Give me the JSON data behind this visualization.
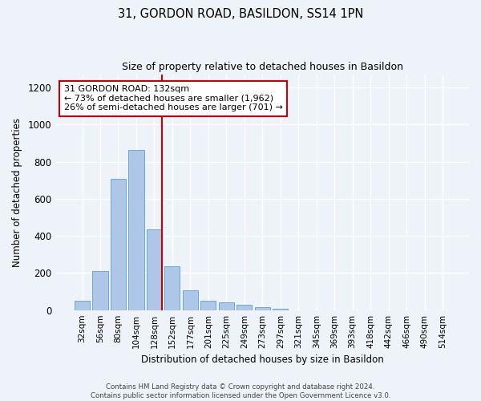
{
  "title": "31, GORDON ROAD, BASILDON, SS14 1PN",
  "subtitle": "Size of property relative to detached houses in Basildon",
  "xlabel": "Distribution of detached houses by size in Basildon",
  "ylabel": "Number of detached properties",
  "categories": [
    "32sqm",
    "56sqm",
    "80sqm",
    "104sqm",
    "128sqm",
    "152sqm",
    "177sqm",
    "201sqm",
    "225sqm",
    "249sqm",
    "273sqm",
    "297sqm",
    "321sqm",
    "345sqm",
    "369sqm",
    "393sqm",
    "418sqm",
    "442sqm",
    "466sqm",
    "490sqm",
    "514sqm"
  ],
  "values": [
    50,
    210,
    710,
    865,
    435,
    235,
    105,
    50,
    40,
    28,
    18,
    8,
    0,
    0,
    0,
    0,
    0,
    0,
    0,
    0,
    0
  ],
  "bar_color": "#aec6e8",
  "bar_edge_color": "#5a9fd4",
  "vline_index": 4,
  "vline_color": "#cc0000",
  "annotation_text": "31 GORDON ROAD: 132sqm\n← 73% of detached houses are smaller (1,962)\n26% of semi-detached houses are larger (701) →",
  "annotation_box_color": "#ffffff",
  "annotation_box_edge": "#cc0000",
  "ylim": [
    0,
    1270
  ],
  "yticks": [
    0,
    200,
    400,
    600,
    800,
    1000,
    1200
  ],
  "footnote": "Contains HM Land Registry data © Crown copyright and database right 2024.\nContains public sector information licensed under the Open Government Licence v3.0.",
  "background_color": "#eef2f9",
  "fig_background": "#eef2f9"
}
